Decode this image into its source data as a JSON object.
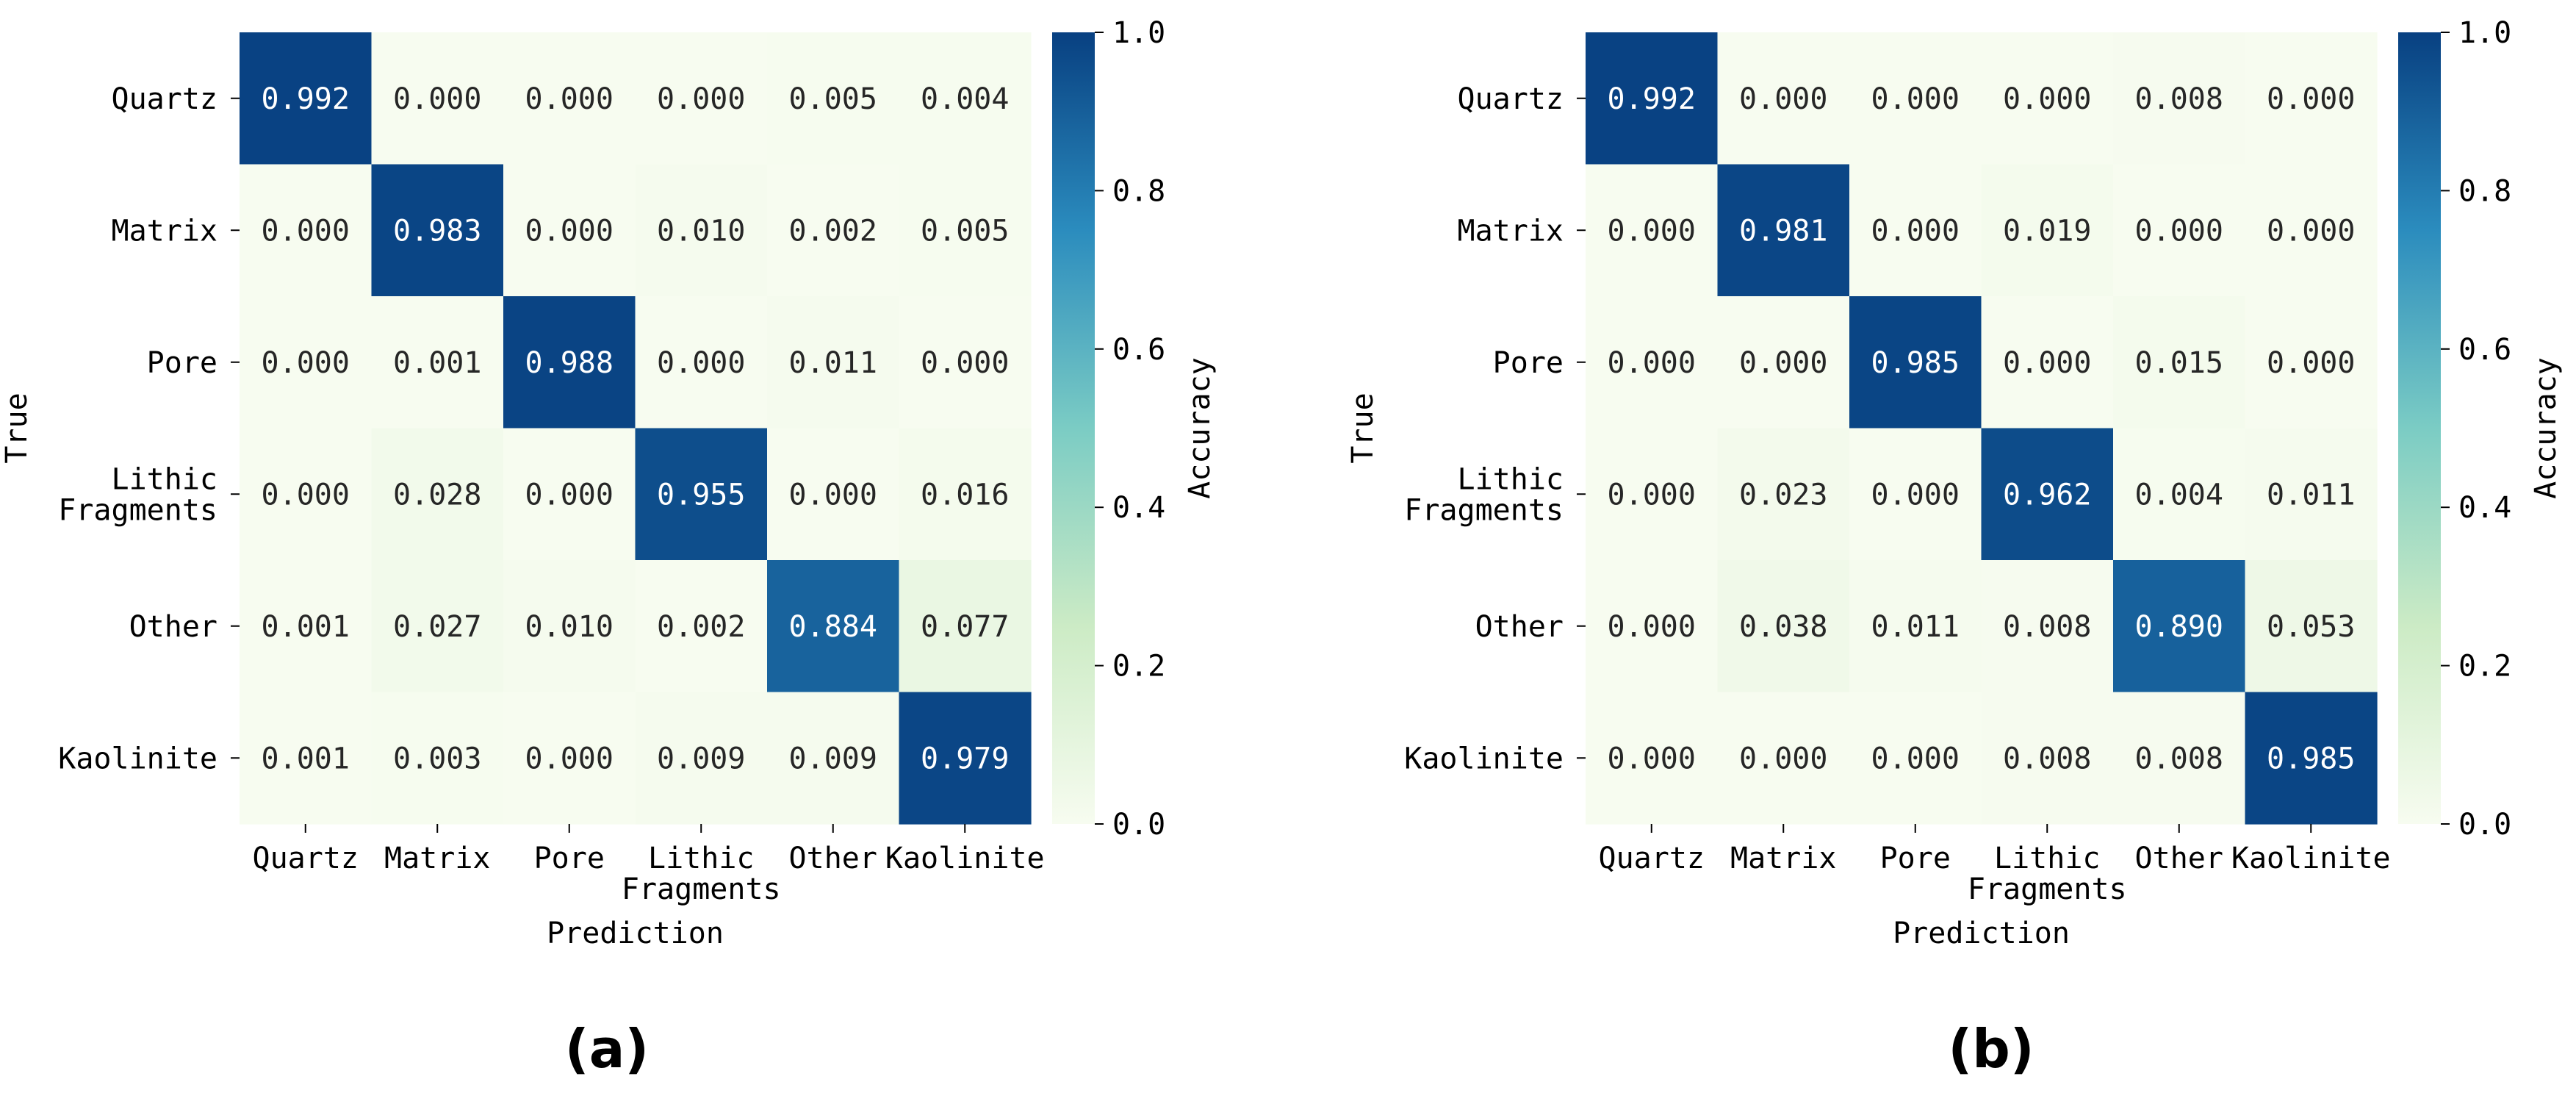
{
  "colors": {
    "low": "#f7fcf0",
    "mid_low": "#ccebc5",
    "mid": "#7bccc4",
    "mid_high": "#2b8cbe",
    "high": "#084081",
    "text_dark": "#262626",
    "text_light": "#ffffff"
  },
  "chart_data": [
    {
      "type": "heatmap",
      "panel_label": "(a)",
      "xlabel": "Prediction",
      "ylabel": "True",
      "colorbar_label": "Accuracy",
      "colorbar_ticks": [
        "0.0",
        "0.2",
        "0.4",
        "0.6",
        "0.8",
        "1.0"
      ],
      "vmin": 0.0,
      "vmax": 1.0,
      "x_categories": [
        "Quartz",
        "Matrix",
        "Pore",
        "Lithic\nFragments",
        "Other",
        "Kaolinite"
      ],
      "y_categories": [
        "Quartz",
        "Matrix",
        "Pore",
        "Lithic\nFragments",
        "Other",
        "Kaolinite"
      ],
      "values": [
        [
          "0.992",
          "0.000",
          "0.000",
          "0.000",
          "0.005",
          "0.004"
        ],
        [
          "0.000",
          "0.983",
          "0.000",
          "0.010",
          "0.002",
          "0.005"
        ],
        [
          "0.000",
          "0.001",
          "0.988",
          "0.000",
          "0.011",
          "0.000"
        ],
        [
          "0.000",
          "0.028",
          "0.000",
          "0.955",
          "0.000",
          "0.016"
        ],
        [
          "0.001",
          "0.027",
          "0.010",
          "0.002",
          "0.884",
          "0.077"
        ],
        [
          "0.001",
          "0.003",
          "0.000",
          "0.009",
          "0.009",
          "0.979"
        ]
      ]
    },
    {
      "type": "heatmap",
      "panel_label": "(b)",
      "xlabel": "Prediction",
      "ylabel": "True",
      "colorbar_label": "Accuracy",
      "colorbar_ticks": [
        "0.0",
        "0.2",
        "0.4",
        "0.6",
        "0.8",
        "1.0"
      ],
      "vmin": 0.0,
      "vmax": 1.0,
      "x_categories": [
        "Quartz",
        "Matrix",
        "Pore",
        "Lithic\nFragments",
        "Other",
        "Kaolinite"
      ],
      "y_categories": [
        "Quartz",
        "Matrix",
        "Pore",
        "Lithic\nFragments",
        "Other",
        "Kaolinite"
      ],
      "values": [
        [
          "0.992",
          "0.000",
          "0.000",
          "0.000",
          "0.008",
          "0.000"
        ],
        [
          "0.000",
          "0.981",
          "0.000",
          "0.019",
          "0.000",
          "0.000"
        ],
        [
          "0.000",
          "0.000",
          "0.985",
          "0.000",
          "0.015",
          "0.000"
        ],
        [
          "0.000",
          "0.023",
          "0.000",
          "0.962",
          "0.004",
          "0.011"
        ],
        [
          "0.000",
          "0.038",
          "0.011",
          "0.008",
          "0.890",
          "0.053"
        ],
        [
          "0.000",
          "0.000",
          "0.000",
          "0.008",
          "0.008",
          "0.985"
        ]
      ]
    }
  ]
}
